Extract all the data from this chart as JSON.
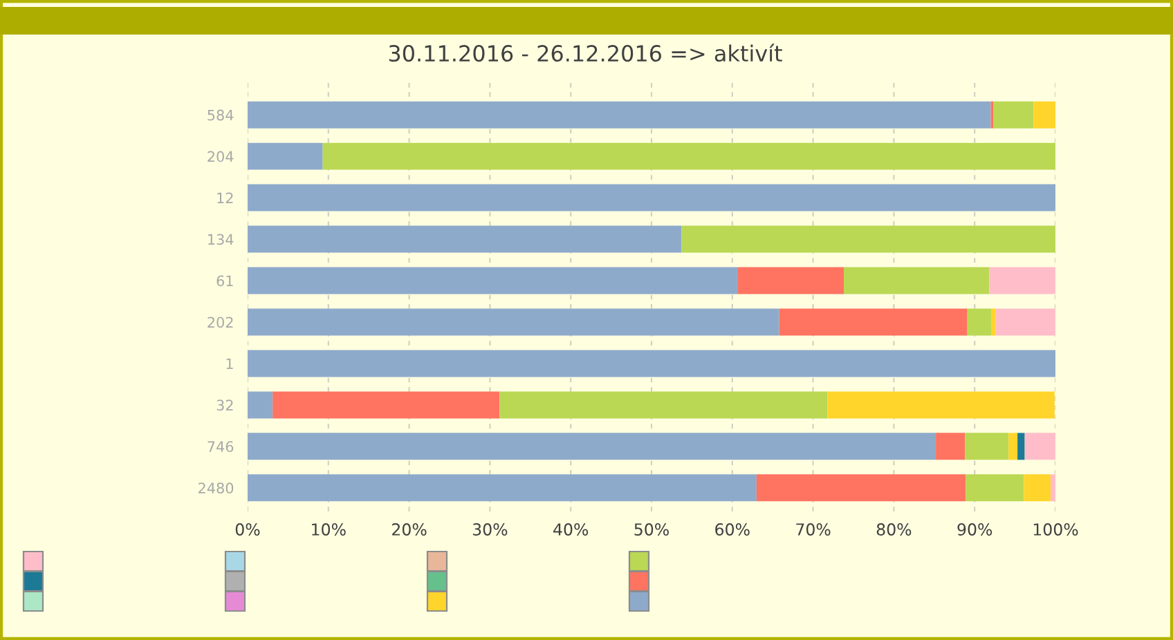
{
  "chart_data": {
    "type": "bar",
    "orientation": "horizontal",
    "stacked": true,
    "title": "30.11.2016 - 26.12.2016 => aktivít",
    "categories": [
      "584",
      "204",
      "12",
      "134",
      "61",
      "202",
      "1",
      "32",
      "746",
      "2480"
    ],
    "series": [
      {
        "color": "#8eaacb",
        "values": [
          92.0,
          9.3,
          100,
          53.7,
          60.7,
          65.8,
          100,
          3.1,
          85.2,
          63.0
        ]
      },
      {
        "color": "#ff7361",
        "values": [
          0.3,
          null,
          null,
          null,
          13.1,
          23.3,
          null,
          28.1,
          3.6,
          25.9
        ]
      },
      {
        "color": "#bad853",
        "values": [
          5.0,
          90.7,
          null,
          46.3,
          18.0,
          3.0,
          null,
          40.6,
          5.4,
          7.2
        ]
      },
      {
        "color": "#ffd52b",
        "values": [
          2.7,
          null,
          null,
          null,
          null,
          0.5,
          null,
          28.1,
          1.1,
          3.3
        ]
      },
      {
        "color": "#66c08c",
        "values": [
          null,
          null,
          null,
          null,
          null,
          null,
          null,
          null,
          null,
          null
        ]
      },
      {
        "color": "#e8b799",
        "values": [
          null,
          null,
          null,
          null,
          null,
          null,
          null,
          null,
          null,
          null
        ]
      },
      {
        "color": "#e68ad6",
        "values": [
          null,
          null,
          null,
          null,
          null,
          null,
          null,
          null,
          null,
          null
        ]
      },
      {
        "color": "#b0b0b0",
        "values": [
          null,
          null,
          null,
          null,
          null,
          null,
          null,
          null,
          null,
          null
        ]
      },
      {
        "color": "#a8d8e6",
        "values": [
          null,
          null,
          null,
          null,
          null,
          null,
          null,
          null,
          null,
          null
        ]
      },
      {
        "color": "#ace8c6",
        "values": [
          null,
          null,
          null,
          null,
          null,
          null,
          null,
          null,
          null,
          null
        ]
      },
      {
        "color": "#1c7a96",
        "values": [
          null,
          null,
          null,
          null,
          null,
          null,
          null,
          null,
          0.9,
          null
        ]
      },
      {
        "color": "#ffbdc9",
        "values": [
          null,
          null,
          null,
          null,
          8.2,
          7.4,
          null,
          null,
          3.8,
          0.6
        ]
      }
    ],
    "xlim": [
      0,
      100
    ],
    "xticks": [
      {
        "value": 0,
        "label": "0%"
      },
      {
        "value": 10,
        "label": "10%"
      },
      {
        "value": 20,
        "label": "20%"
      },
      {
        "value": 30,
        "label": "30%"
      },
      {
        "value": 40,
        "label": "40%"
      },
      {
        "value": 50,
        "label": "50%"
      },
      {
        "value": 60,
        "label": "60%"
      },
      {
        "value": 70,
        "label": "70%"
      },
      {
        "value": 80,
        "label": "80%"
      },
      {
        "value": 90,
        "label": "90%"
      },
      {
        "value": 100,
        "label": "100%"
      }
    ],
    "grid": "x"
  }
}
